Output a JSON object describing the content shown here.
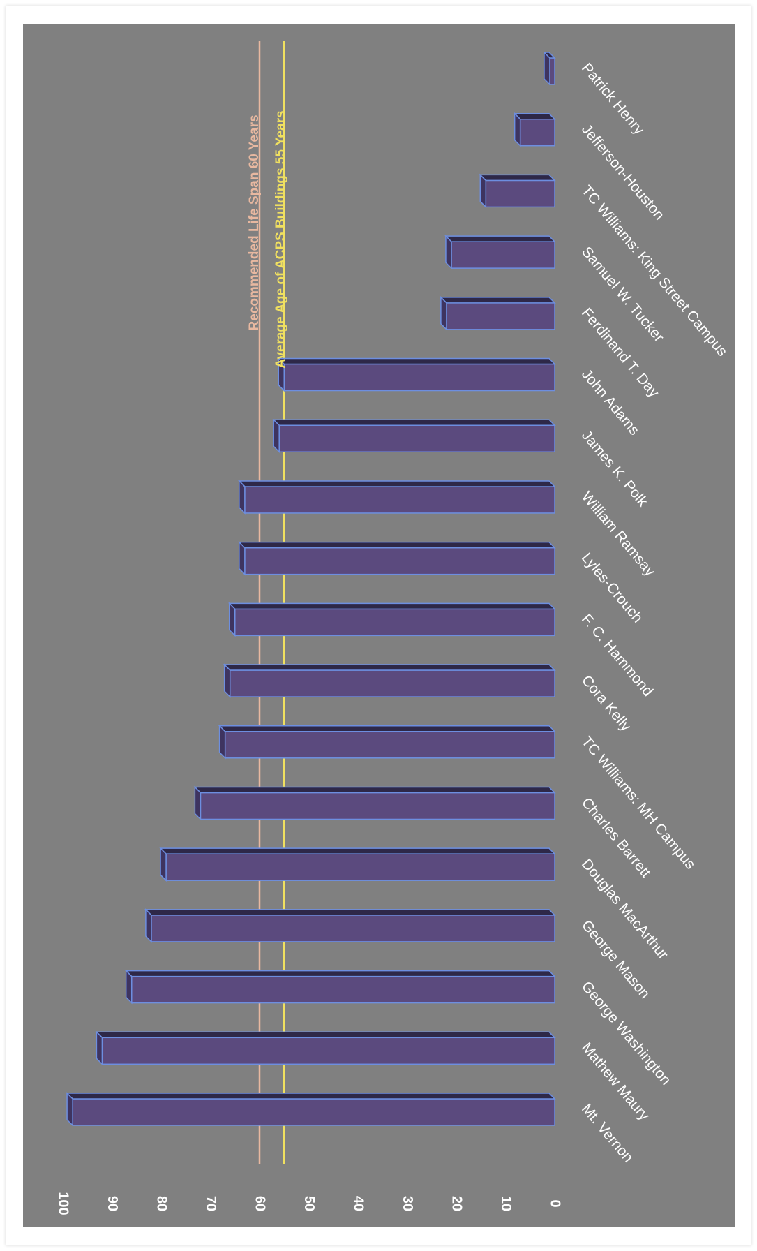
{
  "chart_data": {
    "type": "bar",
    "orientation": "rotated-90",
    "categories": [
      "Mt. Vernon",
      "Mathew Maury",
      "George Washington",
      "George Mason",
      "Douglas MacArthur",
      "Charles Barrett",
      "TC Williams: MH Campus",
      "Cora Kelly",
      "F. C. Hammond",
      "Lyles-Crouch",
      "William Ramsay",
      "James K. Polk",
      "John Adams",
      "Ferdinand T. Day",
      "Samuel W. Tucker",
      "TC Williams: King Street Campus",
      "Jefferson-Houston",
      "Patrick Henry"
    ],
    "values": [
      98,
      92,
      86,
      82,
      79,
      72,
      67,
      66,
      65,
      63,
      63,
      56,
      55,
      22,
      21,
      14,
      7,
      1
    ],
    "ylim": [
      0,
      100
    ],
    "yticks": [
      "0",
      "10",
      "20",
      "30",
      "40",
      "50",
      "60",
      "70",
      "80",
      "90",
      "100"
    ],
    "reference_lines": [
      {
        "label": "Recommended Life Span  60 Years",
        "value": 60,
        "color": "#e8b8a0"
      },
      {
        "label": "Average Age   of ACPS  Buildings  55 Years",
        "value": 55,
        "color": "#f0e060"
      }
    ],
    "colors": {
      "background": "#808080",
      "bar_front": "#5b4a7e",
      "bar_top": "#2e2848",
      "bar_edge": "#6d8ee0",
      "text": "#ffffff"
    },
    "grid": false,
    "legend": "none"
  }
}
